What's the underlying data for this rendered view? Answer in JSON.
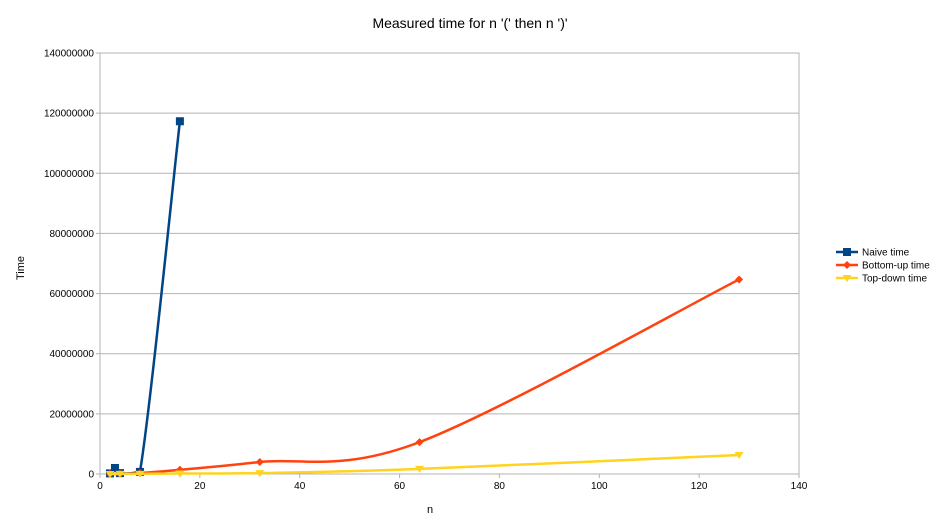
{
  "chart_data": {
    "type": "line",
    "title": "Measured time for n '(' then n ')'",
    "xlabel": "n",
    "ylabel": "Time",
    "xlim": [
      0,
      140
    ],
    "ylim": [
      0,
      140000000
    ],
    "x_ticks": [
      0,
      20,
      40,
      60,
      80,
      100,
      120,
      140
    ],
    "y_ticks": [
      0,
      20000000,
      40000000,
      60000000,
      80000000,
      100000000,
      120000000,
      140000000
    ],
    "grid": "horizontal",
    "legend_position": "right",
    "series": [
      {
        "name": "Naive time",
        "color": "#004586",
        "marker": "square",
        "x": [
          2,
          3,
          4,
          8,
          16
        ],
        "y": [
          200000,
          2000000,
          300000,
          700000,
          117300000
        ]
      },
      {
        "name": "Bottom-up time",
        "color": "#ff420e",
        "marker": "diamond",
        "x": [
          2,
          4,
          8,
          16,
          32,
          64,
          128
        ],
        "y": [
          50000,
          100000,
          300000,
          1400000,
          4000000,
          10600000,
          64700000
        ]
      },
      {
        "name": "Top-down time",
        "color": "#ffd320",
        "marker": "triangle-down",
        "x": [
          2,
          4,
          8,
          16,
          32,
          64,
          128
        ],
        "y": [
          20000,
          30000,
          50000,
          150000,
          300000,
          1700000,
          6300000
        ]
      }
    ]
  }
}
